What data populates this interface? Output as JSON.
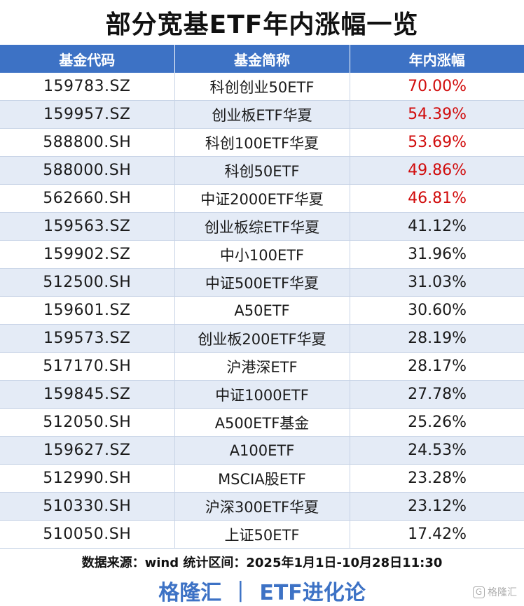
{
  "title": "部分宽基ETF年内涨幅一览",
  "table": {
    "headers": [
      "基金代码",
      "基金简称",
      "年内涨幅"
    ],
    "rows": [
      {
        "code": "159783.SZ",
        "name": "科创创业50ETF",
        "change": "70.00%",
        "highlight": true
      },
      {
        "code": "159957.SZ",
        "name": "创业板ETF华夏",
        "change": "54.39%",
        "highlight": true
      },
      {
        "code": "588800.SH",
        "name": "科创100ETF华夏",
        "change": "53.69%",
        "highlight": true
      },
      {
        "code": "588000.SH",
        "name": "科创50ETF",
        "change": "49.86%",
        "highlight": true
      },
      {
        "code": "562660.SH",
        "name": "中证2000ETF华夏",
        "change": "46.81%",
        "highlight": true
      },
      {
        "code": "159563.SZ",
        "name": "创业板综ETF华夏",
        "change": "41.12%",
        "highlight": false
      },
      {
        "code": "159902.SZ",
        "name": "中小100ETF",
        "change": "31.96%",
        "highlight": false
      },
      {
        "code": "512500.SH",
        "name": "中证500ETF华夏",
        "change": "31.03%",
        "highlight": false
      },
      {
        "code": "159601.SZ",
        "name": "A50ETF",
        "change": "30.60%",
        "highlight": false
      },
      {
        "code": "159573.SZ",
        "name": "创业板200ETF华夏",
        "change": "28.19%",
        "highlight": false
      },
      {
        "code": "517170.SH",
        "name": "沪港深ETF",
        "change": "28.17%",
        "highlight": false
      },
      {
        "code": "159845.SZ",
        "name": "中证1000ETF",
        "change": "27.78%",
        "highlight": false
      },
      {
        "code": "512050.SH",
        "name": "A500ETF基金",
        "change": "25.26%",
        "highlight": false
      },
      {
        "code": "159627.SZ",
        "name": "A100ETF",
        "change": "24.53%",
        "highlight": false
      },
      {
        "code": "512990.SH",
        "name": "MSCIA股ETF",
        "change": "23.28%",
        "highlight": false
      },
      {
        "code": "510330.SH",
        "name": "沪深300ETF华夏",
        "change": "23.12%",
        "highlight": false
      },
      {
        "code": "510050.SH",
        "name": "上证50ETF",
        "change": "17.42%",
        "highlight": false
      }
    ]
  },
  "source": "数据来源：wind 统计区间：2025年1月1日-10月28日11:30",
  "footer": {
    "brand": "格隆汇",
    "separator": "|",
    "column": "ETF进化论"
  },
  "watermark": {
    "icon": "g-logo-icon",
    "icon_glyph": "G",
    "text": "格隆汇"
  },
  "colors": {
    "header_bg": "#3d72c5",
    "stripe_bg": "#e4ebf6",
    "highlight_text": "#d10c0c",
    "brand_blue": "#3d72c5"
  }
}
